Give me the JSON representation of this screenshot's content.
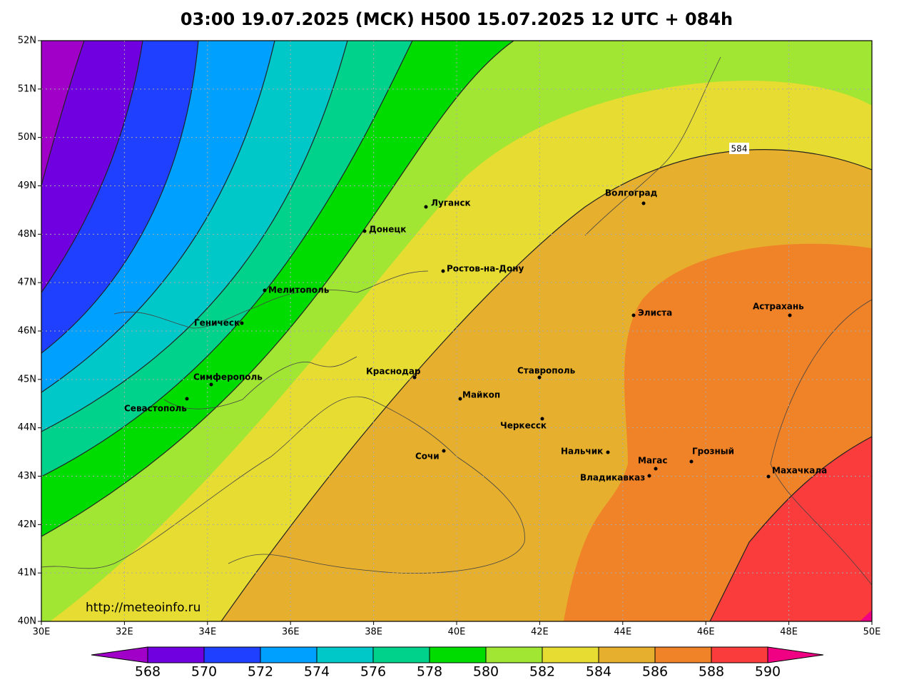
{
  "title": "03:00 19.07.2025 (МСК) H500  15.07.2025 12 UTC + 084h",
  "lat_ticks": [
    "52N",
    "51N",
    "50N",
    "49N",
    "48N",
    "47N",
    "46N",
    "45N",
    "44N",
    "43N",
    "42N",
    "41N",
    "40N"
  ],
  "lon_ticks": [
    "30E",
    "32E",
    "34E",
    "36E",
    "38E",
    "40E",
    "42E",
    "44E",
    "46E",
    "48E",
    "50E"
  ],
  "contour_label": "584",
  "source": "http://meteoinfo.ru",
  "cities": [
    "Луганск",
    "Донецк",
    "Ростов-на-Дону",
    "Мелитополь",
    "Геническ",
    "Симферополь",
    "Севастополь",
    "Краснодар",
    "Майкоп",
    "Сочи",
    "Ставрополь",
    "Черкесск",
    "Нальчик",
    "Магас",
    "Владикавказ",
    "Грозный",
    "Махачкала",
    "Элиста",
    "Астрахань",
    "Волгоград"
  ],
  "colorbar": {
    "labels": [
      568,
      570,
      572,
      574,
      576,
      578,
      580,
      582,
      584,
      586,
      588,
      590
    ],
    "colors": [
      "#a000c8",
      "#7000e0",
      "#2040ff",
      "#00a0ff",
      "#00c8c8",
      "#00d28c",
      "#00dc00",
      "#a0e632",
      "#e6dc32",
      "#e6af2d",
      "#f08228",
      "#fa3c3c",
      "#f00082"
    ]
  }
}
